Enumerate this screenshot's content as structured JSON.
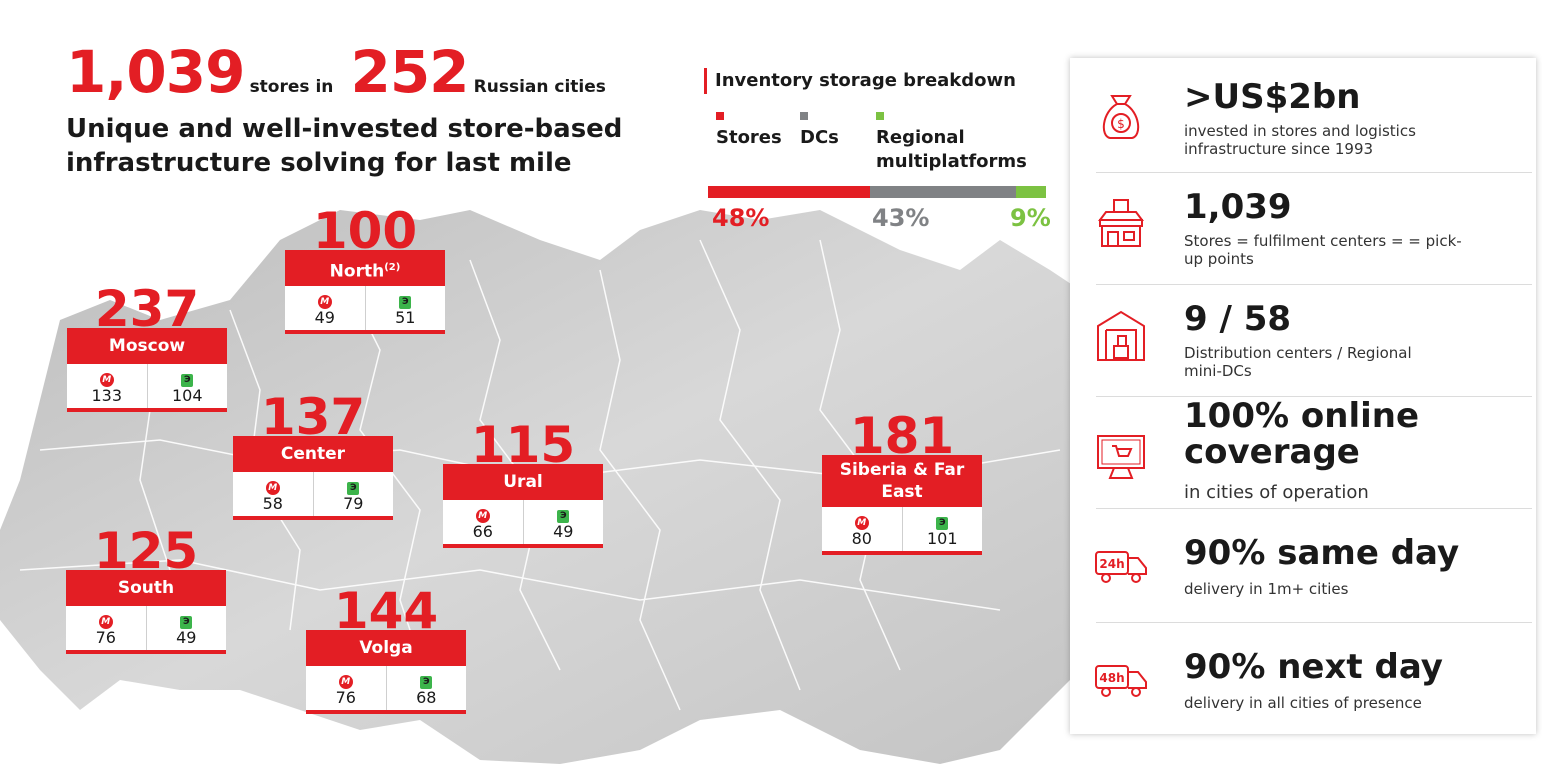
{
  "headline": {
    "stores_count": "1,039",
    "stores_label": "stores in",
    "cities_count": "252",
    "cities_label": "Russian cities"
  },
  "subheadline": "Unique and well-invested store-based infrastructure solving for last mile",
  "inventory": {
    "title": "Inventory storage breakdown",
    "segments": [
      {
        "label": "Stores",
        "percent_text": "48%",
        "share": 48,
        "color": "#e31e24"
      },
      {
        "label": "DCs",
        "percent_text": "43%",
        "share": 43,
        "color": "#808285"
      },
      {
        "label": "Regional multiplatforms",
        "percent_text": "9%",
        "share": 9,
        "color": "#7cc242"
      }
    ]
  },
  "regions": [
    {
      "total": "100",
      "name": "North",
      "name_sup": "(2)",
      "mvideo": "49",
      "eldorado": "51"
    },
    {
      "total": "237",
      "name": "Moscow",
      "name_sup": "",
      "mvideo": "133",
      "eldorado": "104"
    },
    {
      "total": "137",
      "name": "Center",
      "name_sup": "",
      "mvideo": "58",
      "eldorado": "79"
    },
    {
      "total": "115",
      "name": "Ural",
      "name_sup": "",
      "mvideo": "66",
      "eldorado": "49"
    },
    {
      "total": "181",
      "name": "Siberia & Far East",
      "name_sup": "",
      "mvideo": "80",
      "eldorado": "101"
    },
    {
      "total": "125",
      "name": "South",
      "name_sup": "",
      "mvideo": "76",
      "eldorado": "49"
    },
    {
      "total": "144",
      "name": "Volga",
      "name_sup": "",
      "mvideo": "76",
      "eldorado": "68"
    }
  ],
  "brand_logos": {
    "mvideo_letter": "M",
    "eldorado_letter": "Э"
  },
  "stats": [
    {
      "title": ">US$2bn",
      "desc": "invested in stores and logistics infrastructure since 1993",
      "icon": "money-bag-icon"
    },
    {
      "title": "1,039",
      "desc": "Stores = fulfilment centers = = pick-up points",
      "icon": "storefront-icon"
    },
    {
      "title": "9 / 58",
      "desc": "Distribution centers / Regional mini-DCs",
      "icon": "warehouse-icon"
    },
    {
      "title": "100% online coverage",
      "desc": "in cities of operation",
      "icon": "monitor-cart-icon"
    },
    {
      "title": "90% same day",
      "desc": "delivery in 1m+ cities",
      "icon": "truck-24h-icon",
      "truck_label": "24h"
    },
    {
      "title": "90% next day",
      "desc": "delivery in all cities of presence",
      "icon": "truck-48h-icon",
      "truck_label": "48h"
    }
  ],
  "colors": {
    "accent": "#e31e24",
    "grey": "#808285",
    "green": "#7cc242",
    "map": "#c9c9c9"
  }
}
